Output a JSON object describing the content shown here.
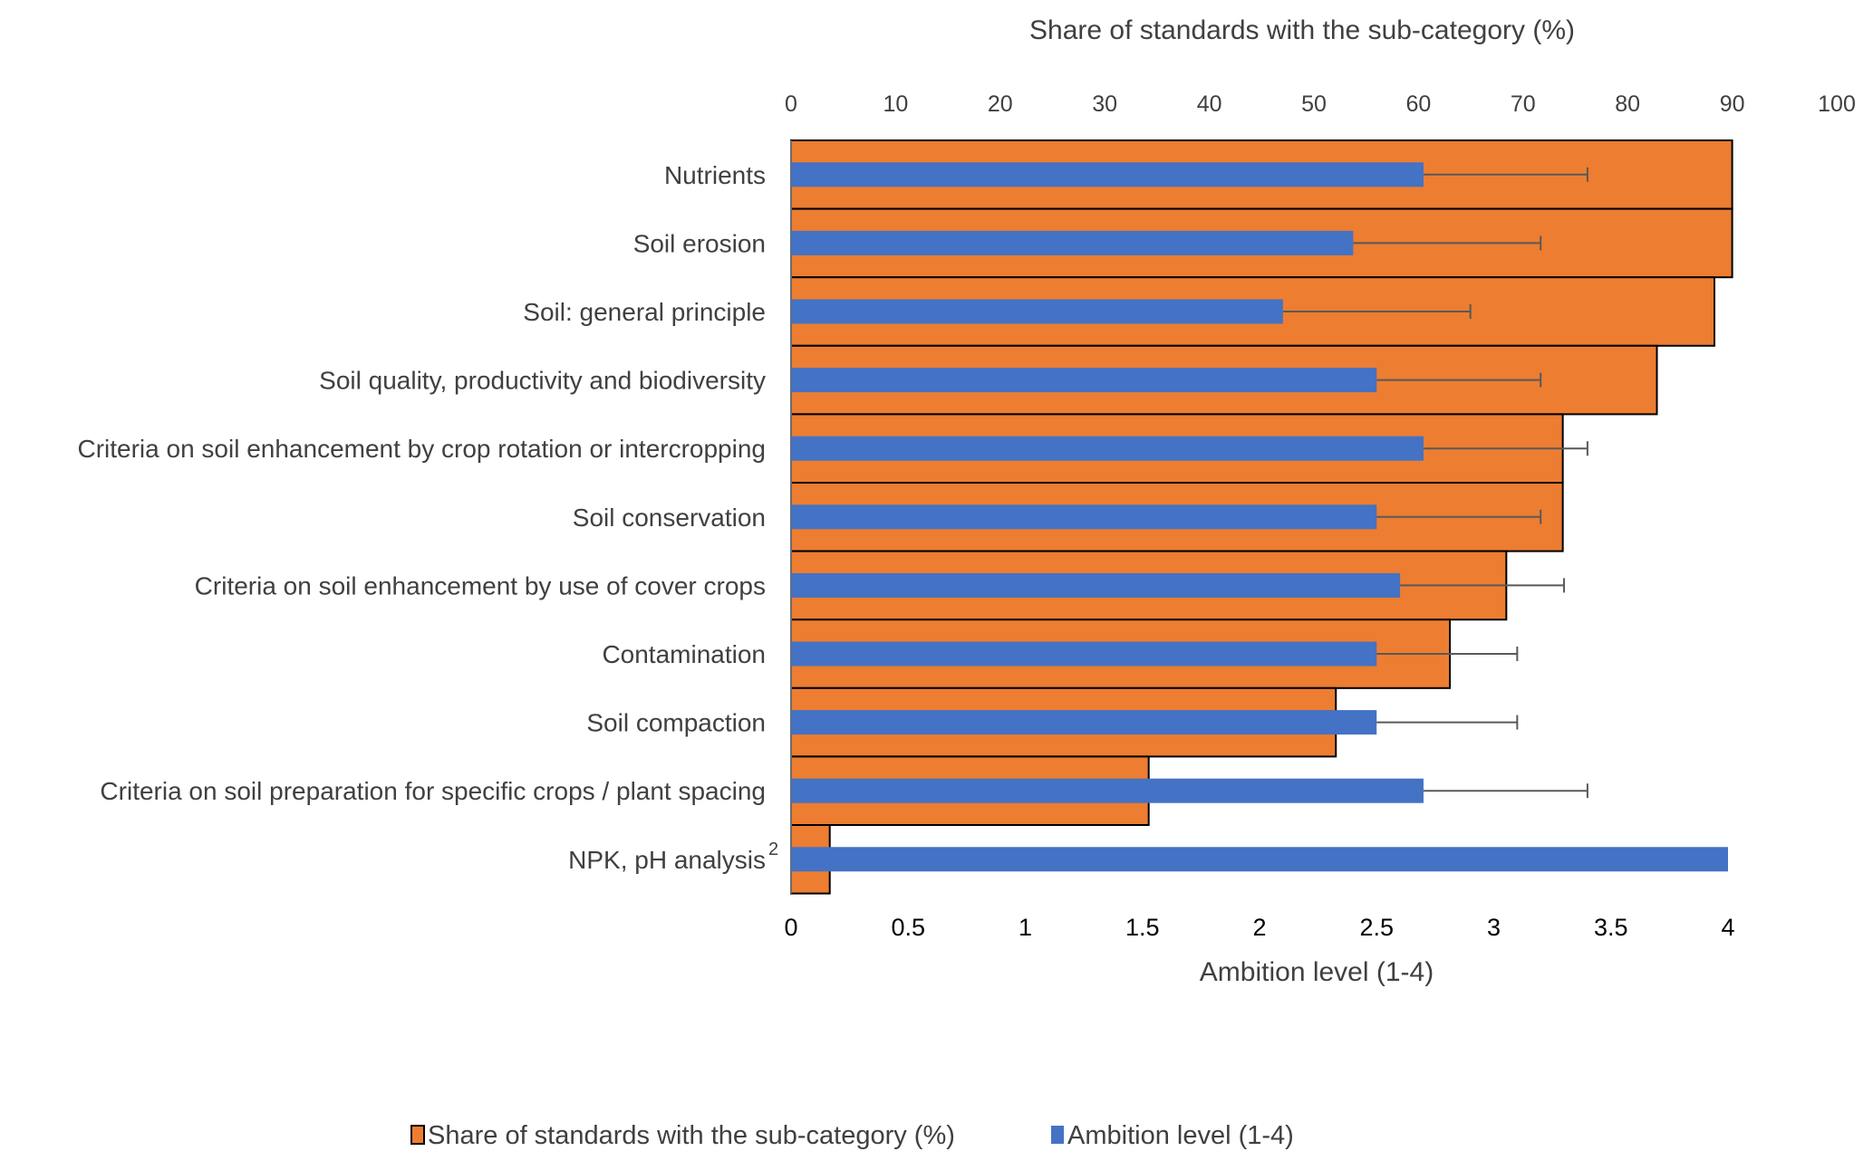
{
  "chart_data": {
    "type": "bar",
    "orientation": "horizontal",
    "categories": [
      "Nutrients",
      "Soil erosion",
      "Soil: general principle",
      "Soil quality, productivity and biodiversity",
      "Criteria on soil enhancement by crop rotation or intercropping",
      "Soil conservation",
      "Criteria on soil enhancement by use of cover crops",
      "Contamination",
      "Soil compaction",
      "Criteria on soil preparation for specific crops / plant spacing",
      "NPK, pH analysis"
    ],
    "category_superscripts": [
      "",
      "",
      "",
      "",
      "",
      "",
      "",
      "",
      "",
      "",
      "2"
    ],
    "series": [
      {
        "name": "Share of standards with the sub-category (%)",
        "axis": "top",
        "color": "#ED7D31",
        "values": [
          90,
          90,
          88.3,
          82.8,
          73.8,
          73.8,
          68.4,
          63.0,
          52.1,
          34.2,
          3.7
        ]
      },
      {
        "name": "Ambition level (1-4)",
        "axis": "bottom",
        "color": "#4472C4",
        "values": [
          2.7,
          2.4,
          2.1,
          2.5,
          2.7,
          2.5,
          2.6,
          2.5,
          2.5,
          2.7,
          4.0
        ],
        "error_plus": [
          0.7,
          0.8,
          0.8,
          0.7,
          0.7,
          0.7,
          0.7,
          0.6,
          0.6,
          0.7,
          0
        ]
      }
    ],
    "top_axis": {
      "title": "Share of standards with the sub-category (%)",
      "range": [
        0,
        100
      ],
      "ticks": [
        "0",
        "10",
        "20",
        "30",
        "40",
        "50",
        "60",
        "70",
        "80",
        "90",
        "100"
      ]
    },
    "bottom_axis": {
      "title": "Ambition level (1-4)",
      "range": [
        0,
        4
      ],
      "ticks": [
        "0",
        "0.5",
        "1",
        "1.5",
        "2",
        "2.5",
        "3",
        "3.5",
        "4"
      ]
    },
    "grid": false,
    "legend_position": "bottom",
    "legend": [
      "Share of standards with the sub-category (%)",
      "Ambition level (1-4)"
    ]
  }
}
